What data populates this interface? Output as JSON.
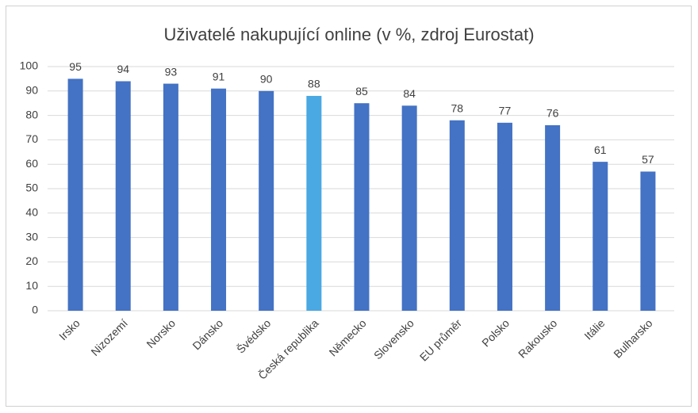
{
  "chart_data": {
    "type": "bar",
    "title": "Uživatelé nakupující online (v %, zdroj Eurostat)",
    "categories": [
      "Irsko",
      "Nizozemí",
      "Norsko",
      "Dánsko",
      "Švédsko",
      "Česká republika",
      "Německo",
      "Slovensko",
      "EU průměr",
      "Polsko",
      "Rakousko",
      "Itálie",
      "Bulharsko"
    ],
    "values": [
      95,
      94,
      93,
      91,
      90,
      88,
      85,
      84,
      78,
      77,
      76,
      61,
      57
    ],
    "colors": [
      "#4472c4",
      "#4472c4",
      "#4472c4",
      "#4472c4",
      "#4472c4",
      "#4aa8e2",
      "#4472c4",
      "#4472c4",
      "#4472c4",
      "#4472c4",
      "#4472c4",
      "#4472c4",
      "#4472c4"
    ],
    "ylim": [
      0,
      100
    ],
    "yticks": [
      0,
      10,
      20,
      30,
      40,
      50,
      60,
      70,
      80,
      90,
      100
    ],
    "grid": true
  }
}
